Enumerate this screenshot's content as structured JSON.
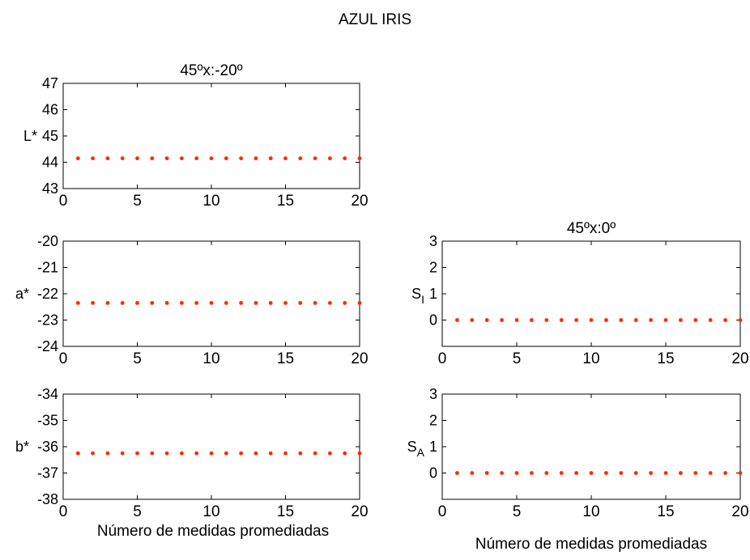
{
  "figure_title": "AZUL IRIS",
  "xlabel_left": "Número de medidas promediadas",
  "xlabel_right": "Número de medidas promediadas",
  "colors": {
    "marker": "#ff2a00",
    "axes": "#000000",
    "background": "#ffffff"
  },
  "chart_data": [
    {
      "type": "scatter",
      "title": "45ºx:-20º",
      "ylabel": "L*",
      "xlim": [
        0,
        20
      ],
      "ylim": [
        43,
        47
      ],
      "xticks": [
        0,
        5,
        10,
        15,
        20
      ],
      "yticks": [
        43,
        44,
        45,
        46,
        47
      ],
      "grid": false,
      "x": [
        1,
        2,
        3,
        4,
        5,
        6,
        7,
        8,
        9,
        10,
        11,
        12,
        13,
        14,
        15,
        16,
        17,
        18,
        19,
        20
      ],
      "y": [
        44.15,
        44.15,
        44.15,
        44.15,
        44.15,
        44.15,
        44.15,
        44.15,
        44.15,
        44.15,
        44.15,
        44.15,
        44.15,
        44.15,
        44.15,
        44.15,
        44.15,
        44.15,
        44.15,
        44.15
      ]
    },
    {
      "type": "scatter",
      "title": "",
      "ylabel": "a*",
      "xlim": [
        0,
        20
      ],
      "ylim": [
        -24,
        -20
      ],
      "xticks": [
        0,
        5,
        10,
        15,
        20
      ],
      "yticks": [
        -24,
        -23,
        -22,
        -21,
        -20
      ],
      "grid": false,
      "x": [
        1,
        2,
        3,
        4,
        5,
        6,
        7,
        8,
        9,
        10,
        11,
        12,
        13,
        14,
        15,
        16,
        17,
        18,
        19,
        20
      ],
      "y": [
        -22.35,
        -22.35,
        -22.35,
        -22.35,
        -22.35,
        -22.35,
        -22.35,
        -22.35,
        -22.35,
        -22.35,
        -22.35,
        -22.35,
        -22.35,
        -22.35,
        -22.35,
        -22.35,
        -22.35,
        -22.35,
        -22.35,
        -22.35
      ]
    },
    {
      "type": "scatter",
      "title": "",
      "ylabel": "b*",
      "xlim": [
        0,
        20
      ],
      "ylim": [
        -38,
        -34
      ],
      "xticks": [
        0,
        5,
        10,
        15,
        20
      ],
      "yticks": [
        -38,
        -37,
        -36,
        -35,
        -34
      ],
      "grid": false,
      "x": [
        1,
        2,
        3,
        4,
        5,
        6,
        7,
        8,
        9,
        10,
        11,
        12,
        13,
        14,
        15,
        16,
        17,
        18,
        19,
        20
      ],
      "y": [
        -36.25,
        -36.25,
        -36.25,
        -36.25,
        -36.25,
        -36.25,
        -36.25,
        -36.25,
        -36.25,
        -36.25,
        -36.25,
        -36.25,
        -36.25,
        -36.25,
        -36.25,
        -36.25,
        -36.25,
        -36.25,
        -36.25,
        -36.25
      ]
    },
    {
      "type": "scatter",
      "title": "45ºx:0º",
      "ylabel": "S",
      "ylabel_sub": "I",
      "xlim": [
        0,
        20
      ],
      "ylim": [
        -1,
        3
      ],
      "xticks": [
        0,
        5,
        10,
        15,
        20
      ],
      "yticks": [
        0,
        1,
        2,
        3
      ],
      "grid": false,
      "x": [
        1,
        2,
        3,
        4,
        5,
        6,
        7,
        8,
        9,
        10,
        11,
        12,
        13,
        14,
        15,
        16,
        17,
        18,
        19,
        20
      ],
      "y": [
        0,
        0,
        0,
        0,
        0,
        0,
        0,
        0,
        0,
        0,
        0,
        0,
        0,
        0,
        0,
        0,
        0,
        0,
        0,
        0
      ]
    },
    {
      "type": "scatter",
      "title": "",
      "ylabel": "S",
      "ylabel_sub": "A",
      "xlim": [
        0,
        20
      ],
      "ylim": [
        -1,
        3
      ],
      "xticks": [
        0,
        5,
        10,
        15,
        20
      ],
      "yticks": [
        0,
        1,
        2,
        3
      ],
      "grid": false,
      "x": [
        1,
        2,
        3,
        4,
        5,
        6,
        7,
        8,
        9,
        10,
        11,
        12,
        13,
        14,
        15,
        16,
        17,
        18,
        19,
        20
      ],
      "y": [
        0,
        0,
        0,
        0,
        0,
        0,
        0,
        0,
        0,
        0,
        0,
        0,
        0,
        0,
        0,
        0,
        0,
        0,
        0,
        0
      ]
    }
  ]
}
